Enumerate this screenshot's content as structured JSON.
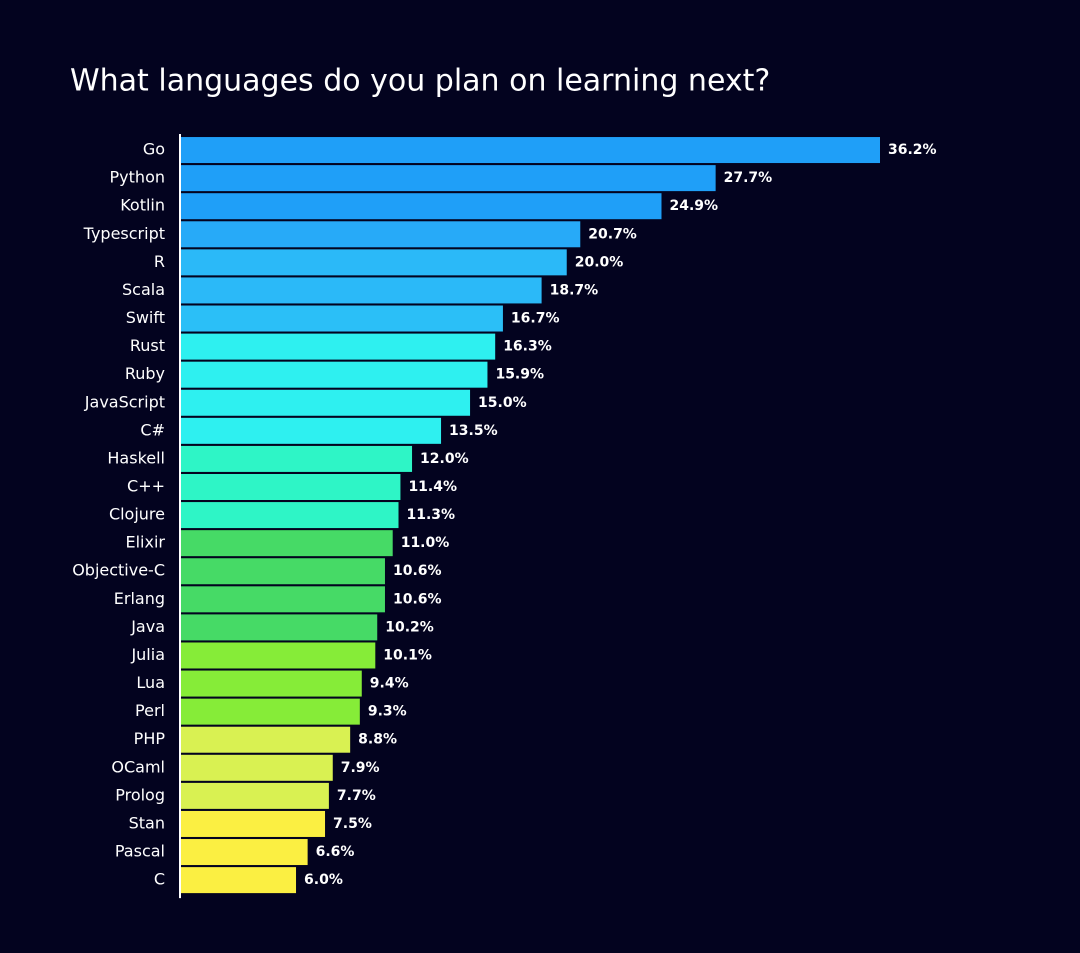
{
  "chart_data": {
    "type": "barh",
    "title": "What languages do you plan on learning next?",
    "categories": [
      "Go",
      "Python",
      "Kotlin",
      "Typescript",
      "R",
      "Scala",
      "Swift",
      "Rust",
      "Ruby",
      "JavaScript",
      "C#",
      "Haskell",
      "C++",
      "Clojure",
      "Elixir",
      "Objective-C",
      "Erlang",
      "Java",
      "Julia",
      "Lua",
      "Perl",
      "PHP",
      "OCaml",
      "Prolog",
      "Stan",
      "Pascal",
      "C"
    ],
    "values": [
      36.2,
      27.7,
      24.9,
      20.7,
      20.0,
      18.7,
      16.7,
      16.3,
      15.9,
      15.0,
      13.5,
      12.0,
      11.4,
      11.3,
      11.0,
      10.6,
      10.6,
      10.2,
      10.1,
      9.4,
      9.3,
      8.8,
      7.9,
      7.7,
      7.5,
      6.6,
      6.0
    ],
    "value_labels": [
      "36.2%",
      "27.7%",
      "24.9%",
      "20.7%",
      "20.0%",
      "18.7%",
      "16.7%",
      "16.3%",
      "15.9%",
      "15.0%",
      "13.5%",
      "12.0%",
      "11.4%",
      "11.3%",
      "11.0%",
      "10.6%",
      "10.6%",
      "10.2%",
      "10.1%",
      "9.4%",
      "9.3%",
      "8.8%",
      "7.9%",
      "7.7%",
      "7.5%",
      "6.6%",
      "6.0%"
    ],
    "colors": [
      "#1f9ff8",
      "#1f9ff8",
      "#1f9ff8",
      "#27aaf8",
      "#2bb9f8",
      "#2bb9f8",
      "#2bbff7",
      "#2ef0f0",
      "#2ef0f0",
      "#2ef0f0",
      "#2ef0f0",
      "#2ef5c6",
      "#2ef5c6",
      "#2ef5c6",
      "#46da66",
      "#46da66",
      "#46da66",
      "#46da66",
      "#86ec38",
      "#86ec38",
      "#86ec38",
      "#d9f152",
      "#d9f152",
      "#d9f152",
      "#fbef42",
      "#fbef42",
      "#fbef42"
    ]
  }
}
